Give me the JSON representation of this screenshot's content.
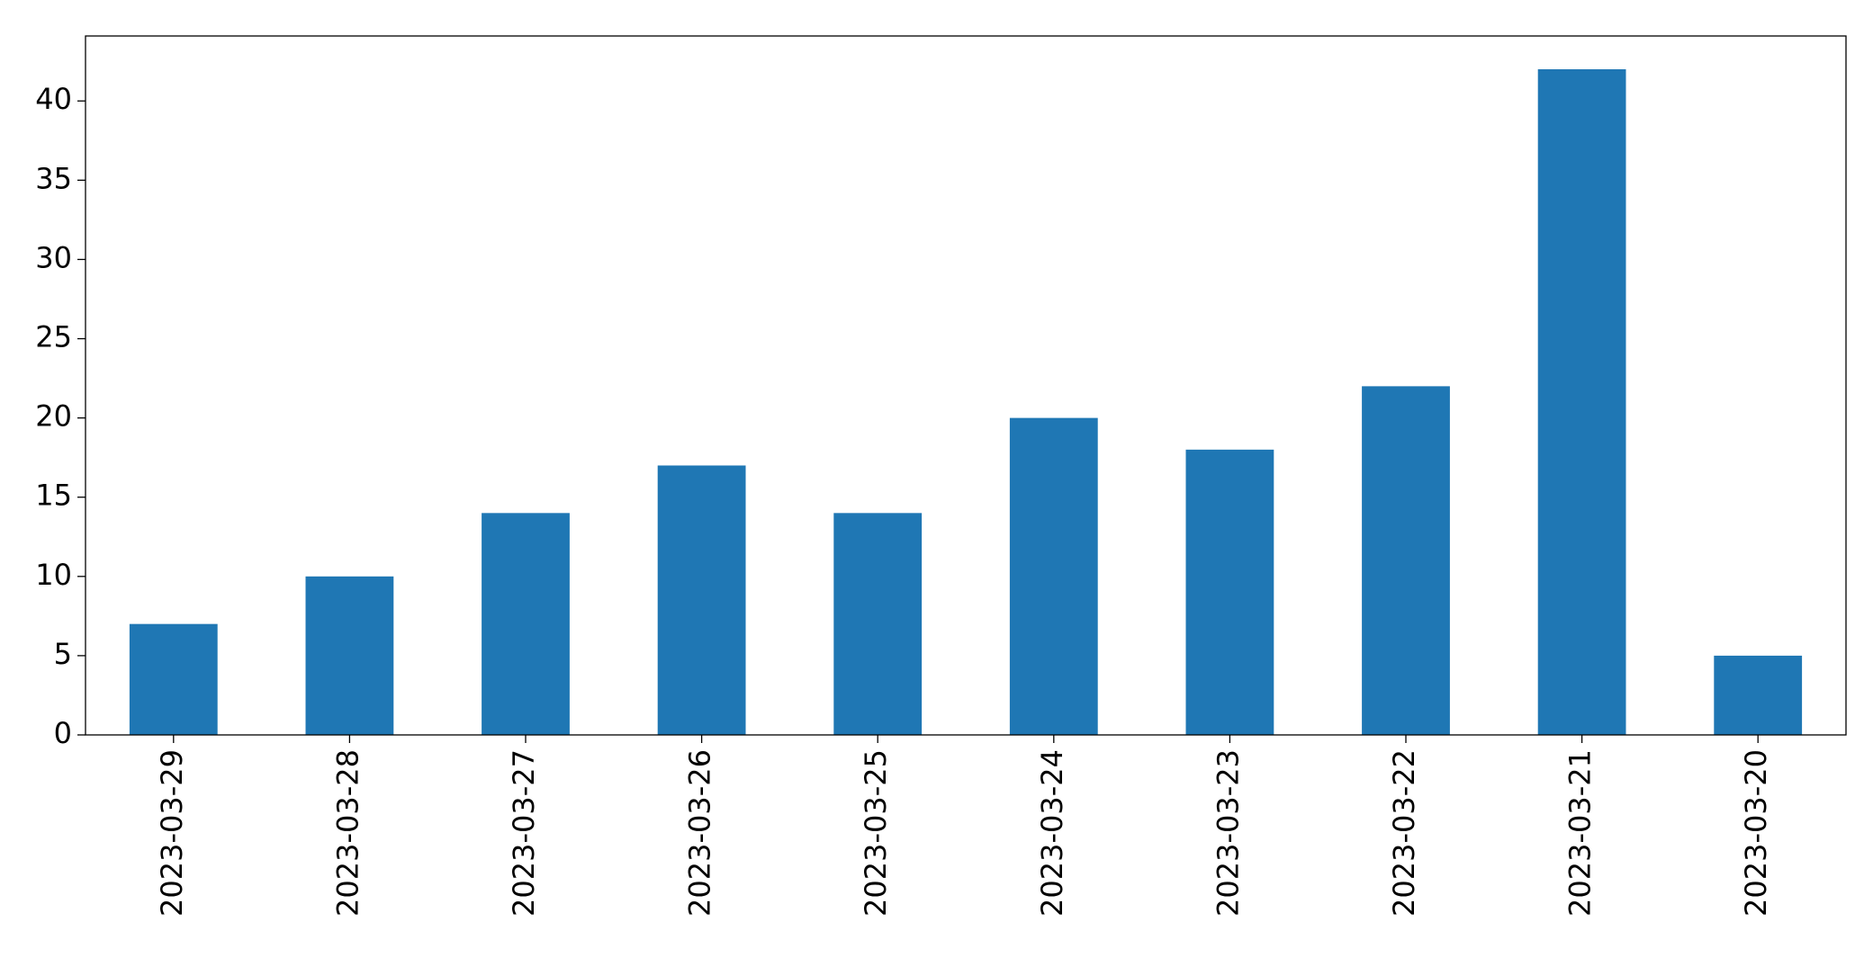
{
  "chart_data": {
    "type": "bar",
    "categories": [
      "2023-03-29",
      "2023-03-28",
      "2023-03-27",
      "2023-03-26",
      "2023-03-25",
      "2023-03-24",
      "2023-03-23",
      "2023-03-22",
      "2023-03-21",
      "2023-03-20"
    ],
    "values": [
      7,
      10,
      14,
      17,
      14,
      20,
      18,
      22,
      42,
      5
    ],
    "color": "#1f77b4",
    "ylim": [
      0,
      44.1
    ],
    "yticks": [
      0,
      5,
      10,
      15,
      20,
      25,
      30,
      35,
      40
    ],
    "grid": false
  }
}
